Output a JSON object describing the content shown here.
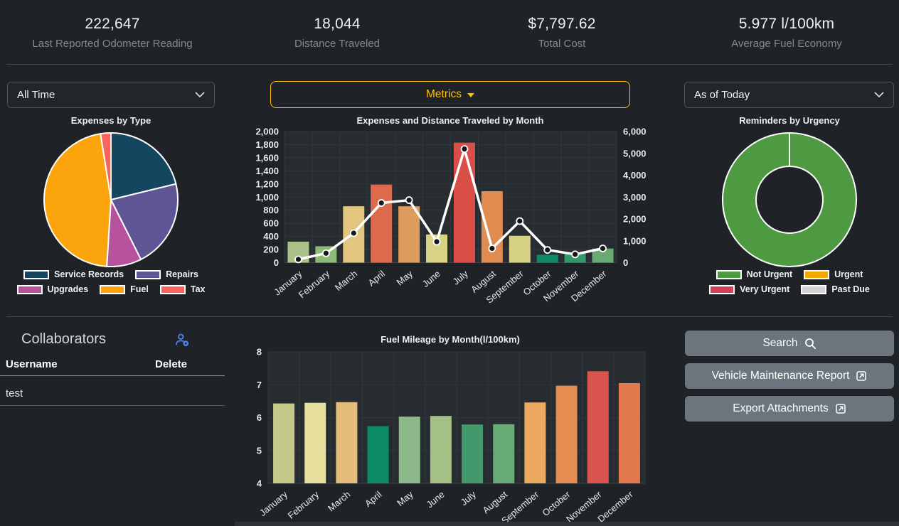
{
  "stats": {
    "items": [
      {
        "value": "222,647",
        "label": "Last Reported Odometer Reading"
      },
      {
        "value": "18,044",
        "label": "Distance Traveled"
      },
      {
        "value": "$7,797.62",
        "label": "Total Cost"
      },
      {
        "value": "5.977 l/100km",
        "label": "Average Fuel Economy"
      }
    ]
  },
  "filters": {
    "time_range": {
      "value": "All Time"
    },
    "metrics_button": {
      "label": "Metrics"
    },
    "reminder_range": {
      "value": "As of Today"
    }
  },
  "collaborators": {
    "title": "Collaborators",
    "columns": {
      "username": "Username",
      "delete": "Delete"
    },
    "rows": [
      {
        "username": "test"
      }
    ]
  },
  "actions": {
    "search": {
      "label": "Search"
    },
    "report": {
      "label": "Vehicle Maintenance Report"
    },
    "export": {
      "label": "Export Attachments"
    }
  },
  "colors": {
    "accent_yellow": "#ffc107",
    "button_gray": "#6c757d",
    "collab_icon_blue": "#4e80e8",
    "line_white": "#ffffff"
  },
  "chart_data": [
    {
      "id": "expenses_by_type",
      "type": "pie",
      "title": "Expenses by Type",
      "slices": [
        {
          "label": "Service Records",
          "value": 21.2,
          "color": "#14465f"
        },
        {
          "label": "Repairs",
          "value": 21.4,
          "color": "#5d5594"
        },
        {
          "label": "Upgrades",
          "value": 8.4,
          "color": "#b7539d"
        },
        {
          "label": "Fuel",
          "value": 46.5,
          "color": "#fca40c"
        },
        {
          "label": "Tax",
          "value": 2.5,
          "color": "#f8655e"
        }
      ],
      "legend_rows": [
        [
          "Service Records",
          "Repairs"
        ],
        [
          "Upgrades",
          "Fuel",
          "Tax"
        ]
      ]
    },
    {
      "id": "expenses_and_distance_by_month",
      "type": "bar+line",
      "title": "Expenses and Distance Traveled by Month",
      "categories": [
        "January",
        "February",
        "March",
        "April",
        "May",
        "June",
        "July",
        "August",
        "September",
        "October",
        "November",
        "December"
      ],
      "left_axis": {
        "min": 0,
        "max": 2000,
        "tick_labels": [
          "2,000",
          "1,800",
          "1,600",
          "1,400",
          "1,200",
          "1,000",
          "800",
          "600",
          "400",
          "200",
          "0"
        ]
      },
      "right_axis": {
        "min": 0,
        "max": 6000,
        "tick_labels": [
          "6,000",
          "5,000",
          "4,000",
          "3,000",
          "2,000",
          "1,000",
          "0"
        ]
      },
      "bars": {
        "name": "Expenses",
        "values": [
          320,
          250,
          860,
          1190,
          860,
          430,
          1830,
          1090,
          410,
          120,
          140,
          215
        ],
        "colors": [
          "#a9c186",
          "#8cba79",
          "#e2c67f",
          "#dd6a4c",
          "#de9d5d",
          "#d9d284",
          "#d94f48",
          "#e08b50",
          "#d6d285",
          "#108a63",
          "#35986b",
          "#67aa74"
        ]
      },
      "line": {
        "name": "Distance Traveled",
        "axis": "right",
        "values": [
          150,
          430,
          1350,
          2730,
          2860,
          960,
          5200,
          650,
          1900,
          580,
          380,
          650
        ],
        "color": "#ffffff",
        "point_color": "#15181b"
      }
    },
    {
      "id": "reminders_by_urgency",
      "type": "donut",
      "title": "Reminders by Urgency",
      "slices": [
        {
          "label": "Not Urgent",
          "value": 100,
          "color": "#4d9a41"
        }
      ],
      "legend": [
        {
          "label": "Not Urgent",
          "color": "#4d9a41"
        },
        {
          "label": "Urgent",
          "color": "#f5a803"
        },
        {
          "label": "Very Urgent",
          "color": "#d2405a"
        },
        {
          "label": "Past Due",
          "color": "#d3d3d3"
        }
      ],
      "legend_rows": [
        [
          "Not Urgent",
          "Urgent"
        ],
        [
          "Very Urgent",
          "Past Due"
        ]
      ]
    },
    {
      "id": "fuel_mileage_by_month",
      "type": "bar",
      "title": "Fuel Mileage by Month(l/100km)",
      "categories": [
        "January",
        "February",
        "March",
        "April",
        "May",
        "June",
        "July",
        "August",
        "September",
        "October",
        "November",
        "December"
      ],
      "ylim": [
        4,
        8
      ],
      "tick_labels": [
        "8",
        "7",
        "6",
        "5",
        "4"
      ],
      "values": [
        6.43,
        6.45,
        6.47,
        5.74,
        6.03,
        6.05,
        5.79,
        5.8,
        6.46,
        6.97,
        7.41,
        7.05
      ],
      "colors": [
        "#c4ca89",
        "#e6df9e",
        "#e5bd7b",
        "#0d8a66",
        "#8bb98a",
        "#a5c084",
        "#43996c",
        "#67ab76",
        "#eaa95e",
        "#e58c50",
        "#d9534f",
        "#e2794e"
      ]
    }
  ]
}
